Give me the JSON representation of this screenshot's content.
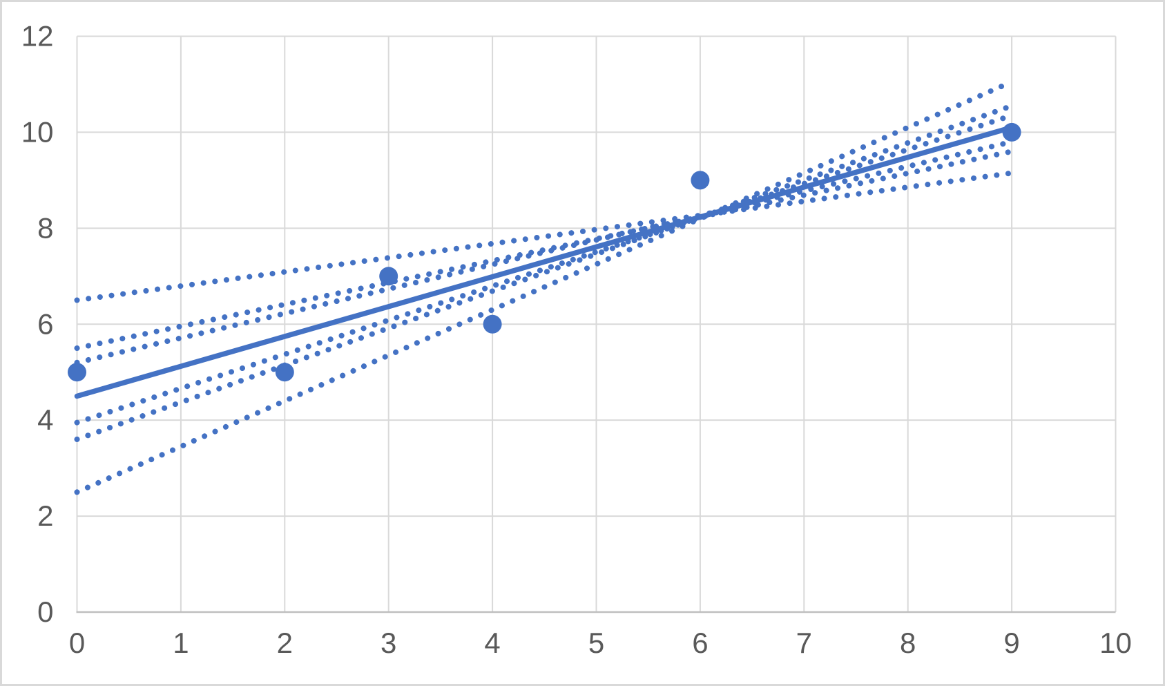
{
  "chart_data": {
    "type": "scatter",
    "title": "",
    "subtitle": "",
    "xlabel": "",
    "ylabel": "",
    "xlim": [
      0,
      10
    ],
    "ylim": [
      0,
      12
    ],
    "x_ticks": [
      0,
      1,
      2,
      3,
      4,
      5,
      6,
      7,
      8,
      9,
      10
    ],
    "y_ticks": [
      0,
      2,
      4,
      6,
      8,
      10,
      12
    ],
    "grid": true,
    "legend": "none",
    "points": [
      {
        "x": 0,
        "y": 5
      },
      {
        "x": 2,
        "y": 5
      },
      {
        "x": 3,
        "y": 7
      },
      {
        "x": 4,
        "y": 6
      },
      {
        "x": 6,
        "y": 9
      },
      {
        "x": 9,
        "y": 10
      }
    ],
    "solid_line": {
      "name": "best-fit-line",
      "x": [
        0,
        9
      ],
      "y": [
        4.5,
        10.1
      ]
    },
    "dotted_lines": [
      {
        "name": "candidate-line-1",
        "x": [
          0,
          9
        ],
        "y": [
          6.5,
          9.15
        ]
      },
      {
        "name": "candidate-line-2",
        "x": [
          0,
          9
        ],
        "y": [
          5.5,
          9.6
        ]
      },
      {
        "name": "candidate-line-3",
        "x": [
          0,
          9
        ],
        "y": [
          5.2,
          9.8
        ]
      },
      {
        "name": "candidate-line-4",
        "x": [
          0,
          9
        ],
        "y": [
          3.95,
          10.35
        ]
      },
      {
        "name": "candidate-line-5",
        "x": [
          0,
          9
        ],
        "y": [
          3.6,
          10.55
        ]
      },
      {
        "name": "candidate-line-6",
        "x": [
          0,
          9
        ],
        "y": [
          2.5,
          11.05
        ]
      }
    ],
    "colors": {
      "series": "#4472C4",
      "gridline": "#D9D9D9",
      "axis_line": "#BFBFBF",
      "tick_label": "#595959",
      "background": "#FFFFFF",
      "frame_border": "#D9D9D9"
    }
  }
}
